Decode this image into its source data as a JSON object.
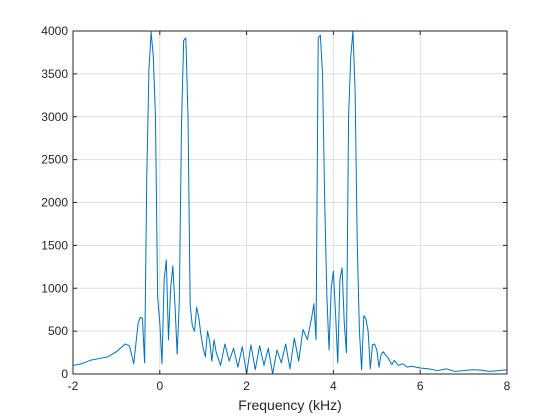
{
  "chart_data": {
    "type": "line",
    "title": "",
    "xlabel": "Frequency (kHz)",
    "ylabel": "",
    "xlim": [
      -2,
      8
    ],
    "ylim": [
      0,
      4000
    ],
    "grid": true,
    "x_ticks": [
      -2,
      0,
      2,
      4,
      6,
      8
    ],
    "y_ticks": [
      0,
      500,
      1000,
      1500,
      2000,
      2500,
      3000,
      3500,
      4000
    ],
    "x_tick_labels": [
      "-2",
      "0",
      "2",
      "4",
      "6",
      "8"
    ],
    "y_tick_labels": [
      "0",
      "500",
      "1000",
      "1500",
      "2000",
      "2500",
      "3000",
      "3500",
      "4000"
    ],
    "series": [
      {
        "color": "#0072BD",
        "x": [
          -2,
          -1.8,
          -1.6,
          -1.4,
          -1.2,
          -1.0,
          -0.8,
          -0.7,
          -0.6,
          -0.5,
          -0.45,
          -0.4,
          -0.35,
          -0.3,
          -0.25,
          -0.2,
          -0.15,
          -0.1,
          -0.05,
          0.0,
          0.05,
          0.1,
          0.15,
          0.2,
          0.25,
          0.3,
          0.35,
          0.4,
          0.45,
          0.5,
          0.55,
          0.6,
          0.65,
          0.7,
          0.75,
          0.8,
          0.85,
          0.9,
          0.95,
          1.0,
          1.05,
          1.1,
          1.15,
          1.2,
          1.25,
          1.3,
          1.4,
          1.5,
          1.6,
          1.7,
          1.8,
          1.9,
          2.0,
          2.1,
          2.2,
          2.3,
          2.4,
          2.5,
          2.6,
          2.7,
          2.8,
          2.9,
          3.0,
          3.1,
          3.2,
          3.3,
          3.4,
          3.5,
          3.55,
          3.6,
          3.65,
          3.7,
          3.75,
          3.8,
          3.85,
          3.9,
          3.95,
          4.0,
          4.05,
          4.1,
          4.15,
          4.2,
          4.25,
          4.3,
          4.35,
          4.4,
          4.45,
          4.5,
          4.55,
          4.6,
          4.65,
          4.7,
          4.75,
          4.8,
          4.85,
          4.9,
          4.95,
          5.0,
          5.05,
          5.1,
          5.15,
          5.2,
          5.25,
          5.3,
          5.35,
          5.4,
          5.5,
          5.6,
          5.7,
          5.8,
          6.0,
          6.2,
          6.4,
          6.6,
          6.8,
          7.0,
          7.2,
          7.4,
          7.6,
          7.8,
          8.0
        ],
        "y": [
          100,
          120,
          160,
          180,
          200,
          260,
          350,
          330,
          120,
          590,
          660,
          650,
          130,
          2300,
          3550,
          3990,
          3700,
          3000,
          900,
          600,
          120,
          1100,
          1330,
          400,
          1000,
          1260,
          800,
          230,
          850,
          2900,
          3890,
          3920,
          3000,
          800,
          560,
          500,
          780,
          650,
          450,
          300,
          200,
          500,
          380,
          150,
          400,
          250,
          100,
          350,
          150,
          300,
          80,
          320,
          0,
          340,
          50,
          330,
          100,
          300,
          0,
          280,
          130,
          350,
          60,
          420,
          150,
          520,
          400,
          660,
          820,
          400,
          3920,
          3950,
          3500,
          2000,
          900,
          280,
          1000,
          1200,
          700,
          130,
          1100,
          1240,
          600,
          250,
          3000,
          3700,
          4000,
          3300,
          1500,
          500,
          50,
          680,
          640,
          500,
          60,
          340,
          350,
          280,
          80,
          230,
          260,
          220,
          200,
          150,
          110,
          160,
          100,
          120,
          80,
          90,
          70,
          60,
          40,
          60,
          30,
          40,
          50,
          45,
          30,
          40,
          50
        ]
      }
    ]
  }
}
